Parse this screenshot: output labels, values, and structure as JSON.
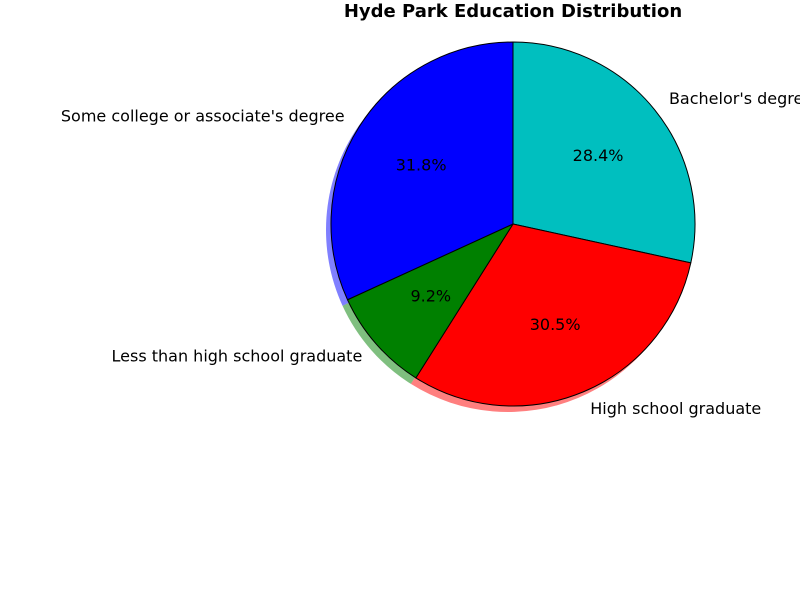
{
  "chart_data": {
    "type": "pie",
    "title": "Hyde Park Education Distribution",
    "slices": [
      {
        "label": "Bachelor's degree",
        "value": 28.4,
        "pct_label": "28.4%",
        "color": "#00bfbf"
      },
      {
        "label": "High school graduate",
        "value": 30.5,
        "pct_label": "30.5%",
        "color": "#ff0000"
      },
      {
        "label": "Less than high school graduate",
        "value": 9.2,
        "pct_label": "9.2%",
        "color": "#008000"
      },
      {
        "label": "Some college or associate's degree",
        "value": 31.8,
        "pct_label": "31.8%",
        "color": "#0000ff"
      }
    ],
    "start_angle": "top (12 o'clock), clockwise",
    "shadow": true,
    "edgecolor": "#000000"
  }
}
